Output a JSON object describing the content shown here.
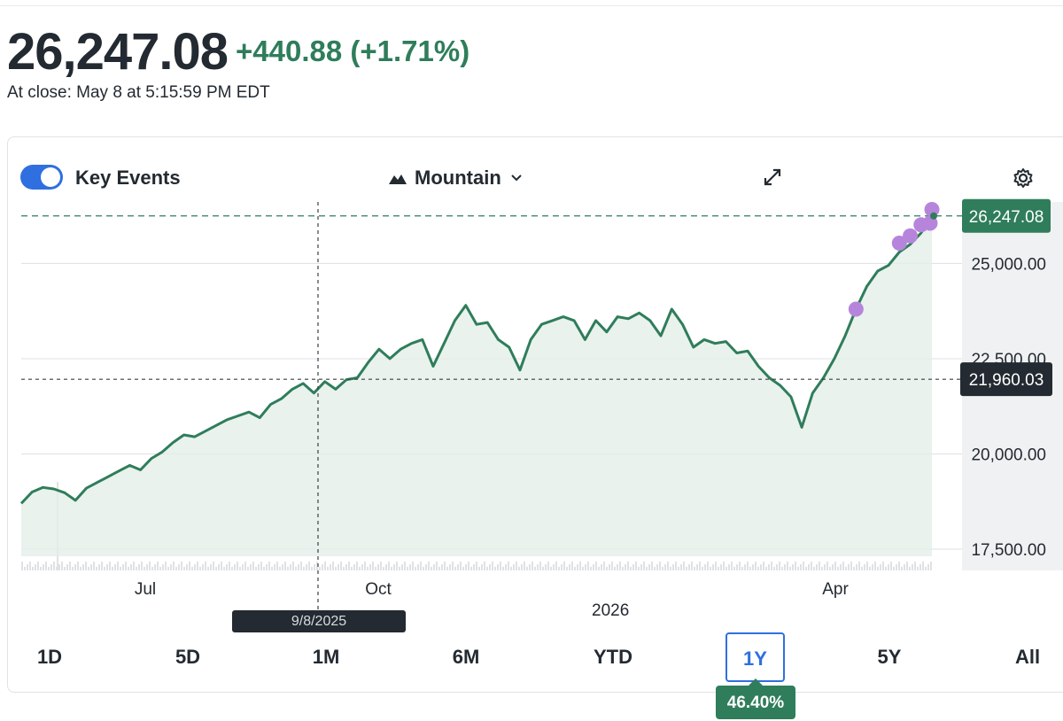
{
  "quote": {
    "price": "26,247.08",
    "change": "+440.88 (+1.71%)",
    "close_time": "At close: May 8 at 5:15:59 PM EDT"
  },
  "toolbar": {
    "key_events_label": "Key Events",
    "key_events_on": true,
    "chart_type_label": "Mountain",
    "icons": [
      "mountain-icon",
      "chevron-down-icon",
      "expand-icon",
      "gear-icon"
    ]
  },
  "chart_data": {
    "type": "area",
    "y_ticks": [
      "25,000.00",
      "22,500.00",
      "20,000.00",
      "17,500.00"
    ],
    "ylim": [
      17500,
      26800
    ],
    "x_tick_labels": [
      "Jul",
      "Oct",
      "Apr"
    ],
    "year_label": "2026",
    "last_price_label": "26,247.08",
    "crosshair_value_label": "21,960.03",
    "crosshair_date_label": "9/8/2025",
    "last_value": 26247.08,
    "crosshair_value": 21960.03,
    "series": [
      {
        "values": [
          18700,
          19000,
          19120,
          19080,
          18980,
          18780,
          19100,
          19250,
          19400,
          19550,
          19700,
          19580,
          19880,
          20050,
          20300,
          20500,
          20450,
          20600,
          20750,
          20900,
          21000,
          21100,
          20950,
          21300,
          21450,
          21700,
          21850,
          21600,
          21900,
          21700,
          21950,
          22000,
          22400,
          22750,
          22500,
          22750,
          22900,
          23000,
          22300,
          22900,
          23500,
          23900,
          23400,
          23450,
          23000,
          22800,
          22200,
          23000,
          23400,
          23500,
          23600,
          23500,
          23000,
          23500,
          23200,
          23600,
          23550,
          23700,
          23500,
          23100,
          23800,
          23400,
          22800,
          23000,
          22900,
          22950,
          22650,
          22700,
          22300,
          22000,
          21800,
          21500,
          20700,
          21600,
          22000,
          22500,
          23100,
          23800,
          24400,
          24800,
          24950,
          25300,
          25500,
          25800,
          26250
        ]
      }
    ],
    "volume_note": "",
    "key_event_markers": 5,
    "colors": {
      "line": "#2f7d5b",
      "fill": "#e3efe9",
      "marker": "#b685db",
      "label_bg": "#2f7d5b",
      "crosshair_bg": "#232a31"
    }
  },
  "ranges": {
    "items": [
      "1D",
      "5D",
      "1M",
      "6M",
      "YTD",
      "1Y",
      "5Y",
      "All"
    ],
    "active": "1Y",
    "active_change": "46.40%"
  },
  "colors": {
    "accent": "#2f6fe0",
    "positive": "#2f7d5b"
  }
}
